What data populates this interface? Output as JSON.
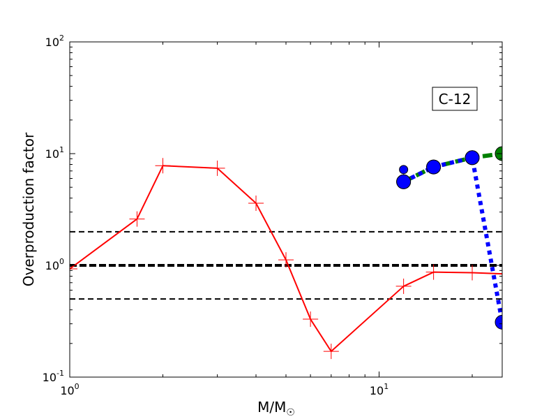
{
  "chart_data": {
    "type": "line",
    "xlabel": "M/M",
    "xlabel_subscript": "☉",
    "ylabel": "Overproduction factor",
    "xscale": "log",
    "yscale": "log",
    "xlim": [
      1,
      25
    ],
    "ylim": [
      0.1,
      100
    ],
    "x_ticks": [
      {
        "value": 1,
        "base": "10",
        "exp": "0"
      },
      {
        "value": 10,
        "base": "10",
        "exp": "1"
      }
    ],
    "y_ticks": [
      {
        "value": 0.1,
        "base": "10",
        "exp": "-1"
      },
      {
        "value": 1,
        "base": "10",
        "exp": "0"
      },
      {
        "value": 10,
        "base": "10",
        "exp": "1"
      },
      {
        "value": 100,
        "base": "10",
        "exp": "2"
      }
    ],
    "annotation": "C-12",
    "reference_lines": [
      {
        "y": 2.0,
        "style": "dashed",
        "weight": "thin",
        "color": "#000000"
      },
      {
        "y": 1.0,
        "style": "dashed",
        "weight": "thick",
        "color": "#000000"
      },
      {
        "y": 0.5,
        "style": "dashed",
        "weight": "thin",
        "color": "#000000"
      }
    ],
    "series": [
      {
        "color": "#ff0000",
        "line": "solid",
        "marker": "plus",
        "x": [
          1.0,
          1.65,
          2.0,
          3.0,
          4.0,
          5.0,
          6.0,
          7.0,
          12.0,
          15.0,
          20.0,
          25.0
        ],
        "y": [
          0.93,
          2.6,
          7.8,
          7.4,
          3.6,
          1.12,
          0.33,
          0.17,
          0.65,
          0.87,
          0.86,
          0.84
        ]
      },
      {
        "color": "#008000",
        "line": "dashed",
        "marker": "circle",
        "x": [
          12.0,
          15.0,
          20.0,
          25.0
        ],
        "y": [
          5.6,
          7.6,
          9.2,
          10.0
        ]
      },
      {
        "color": "#0000ff",
        "line": "dotted",
        "marker": "circle",
        "x": [
          12.0,
          15.0,
          20.0,
          25.0
        ],
        "y": [
          5.6,
          7.6,
          9.2,
          0.31
        ]
      },
      {
        "color": "#0000ff",
        "line": "none",
        "marker": "circle-small",
        "x": [
          12.0
        ],
        "y": [
          7.2
        ]
      }
    ]
  }
}
